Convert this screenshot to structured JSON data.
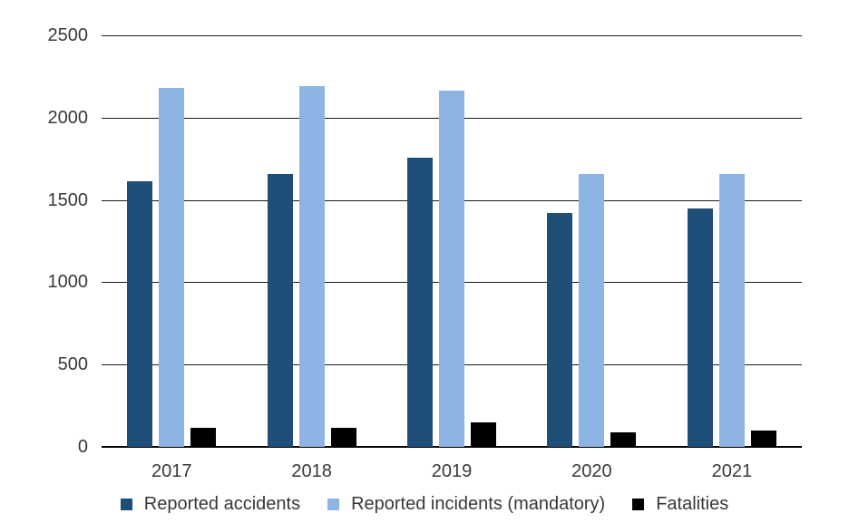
{
  "chart_data": {
    "type": "bar",
    "title": "",
    "xlabel": "",
    "ylabel": "",
    "categories": [
      "2017",
      "2018",
      "2019",
      "2020",
      "2021"
    ],
    "series": [
      {
        "name": "Reported accidents",
        "color": "#1F4E79",
        "values": [
          1615,
          1660,
          1755,
          1420,
          1450
        ]
      },
      {
        "name": "Reported incidents (mandatory)",
        "color": "#8EB4E3",
        "values": [
          2180,
          2190,
          2165,
          1655,
          1660
        ]
      },
      {
        "name": "Fatalities",
        "color": "#000000",
        "values": [
          115,
          115,
          150,
          90,
          100
        ]
      }
    ],
    "ylim": [
      0,
      2500
    ],
    "yticks": [
      0,
      500,
      1000,
      1500,
      2000,
      2500
    ],
    "grid": true,
    "gridline_color": "#1a1a1a",
    "axis_text_color": "#383838",
    "legend_position": "bottom"
  }
}
